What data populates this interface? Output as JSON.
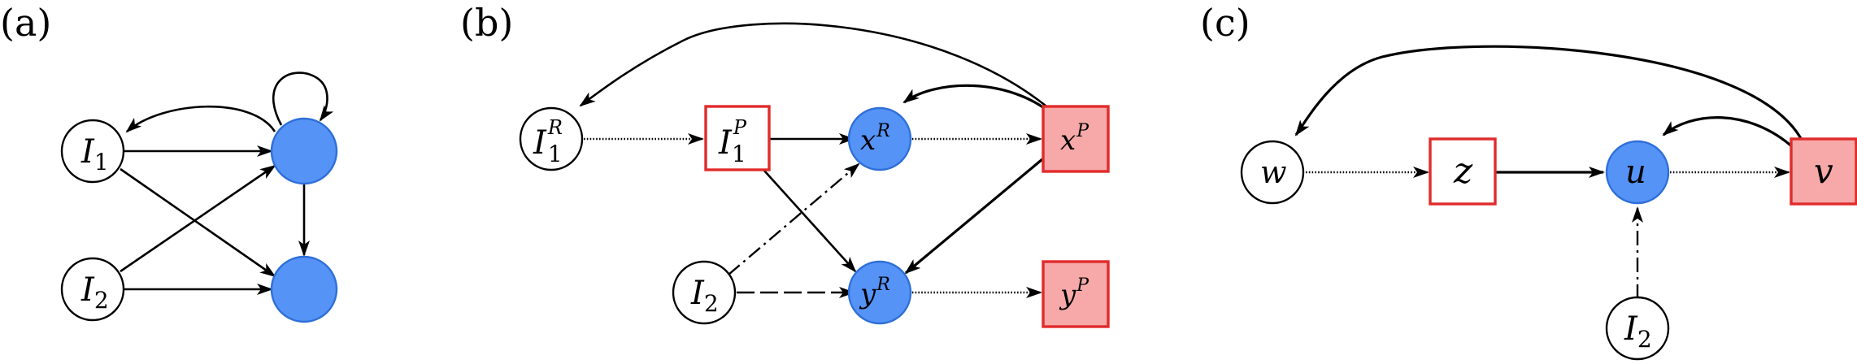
{
  "panels": {
    "a": {
      "label": "(a)"
    },
    "b": {
      "label": "(b)"
    },
    "c": {
      "label": "(c)"
    }
  },
  "nodes": {
    "a_I1": {
      "main": "I",
      "sub": "1"
    },
    "a_I2": {
      "main": "I",
      "sub": "2"
    },
    "b_I1R": {
      "main": "I",
      "sub": "1",
      "sup": "R"
    },
    "b_I1P": {
      "main": "I",
      "sub": "1",
      "sup": "P"
    },
    "b_xR": {
      "main": "x",
      "sup": "R"
    },
    "b_xP": {
      "main": "x",
      "sup": "P"
    },
    "b_I2": {
      "main": "I",
      "sub": "2"
    },
    "b_yR": {
      "main": "y",
      "sup": "R"
    },
    "b_yP": {
      "main": "y",
      "sup": "P"
    },
    "c_w": {
      "main": "w"
    },
    "c_z": {
      "main": "z"
    },
    "c_u": {
      "main": "u"
    },
    "c_v": {
      "main": "v"
    },
    "c_I2": {
      "main": "I",
      "sub": "2"
    }
  },
  "colors": {
    "node_blue": "#5593f7",
    "node_blue_stroke": "#2e6fd8",
    "square_pink": "#f7a9a9",
    "square_red_stroke": "#e02b2b"
  }
}
